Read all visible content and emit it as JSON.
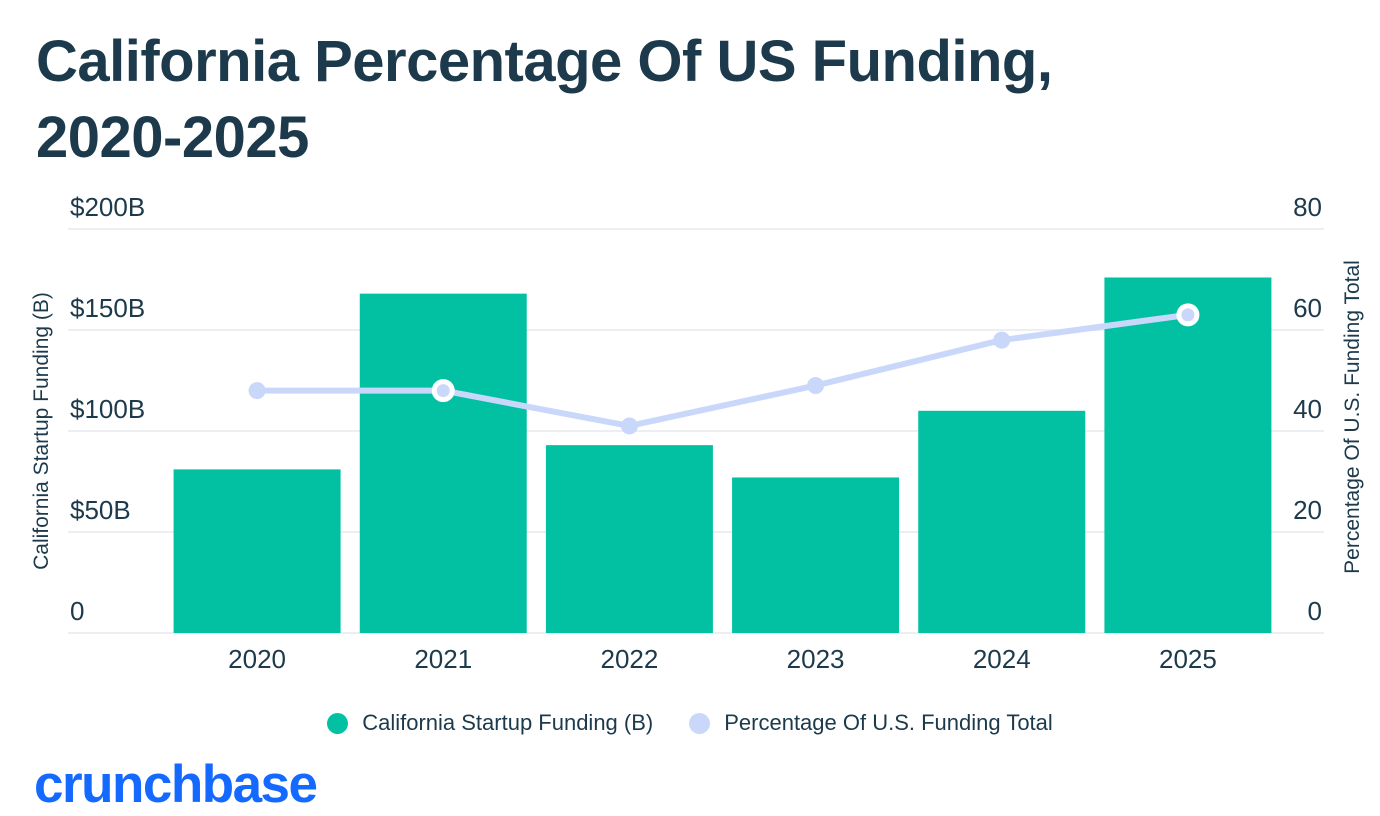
{
  "title": {
    "line1": "California Percentage Of US Funding,",
    "line2": "2020-2025",
    "color": "#1C3A4B"
  },
  "chart_data": {
    "type": "bar+line combo",
    "categories": [
      "2020",
      "2021",
      "2022",
      "2023",
      "2024",
      "2025"
    ],
    "series": [
      {
        "name": "California Startup Funding (B)",
        "type": "bar",
        "axis": "left",
        "unit": "$B",
        "color": "#02C1A2",
        "values": [
          81,
          168,
          93,
          77,
          110,
          176
        ]
      },
      {
        "name": "Percentage Of U.S. Funding Total",
        "type": "line",
        "axis": "right",
        "unit": "%",
        "color": "#C9D8FA",
        "values": [
          48,
          48,
          41,
          49,
          58,
          63
        ],
        "highlight_points": [
          1,
          5
        ]
      }
    ],
    "left_axis": {
      "label": "California Startup Funding (B)",
      "range": [
        0,
        200
      ],
      "ticks": [
        {
          "label": "$200B",
          "value": 200
        },
        {
          "label": "$150B",
          "value": 150
        },
        {
          "label": "$100B",
          "value": 100
        },
        {
          "label": "$50B",
          "value": 50
        },
        {
          "label": "0",
          "value": 0
        }
      ]
    },
    "right_axis": {
      "label": "Percentage Of U.S. Funding Total",
      "range": [
        0,
        80
      ],
      "ticks": [
        {
          "label": "80",
          "value": 80
        },
        {
          "label": "60",
          "value": 60
        },
        {
          "label": "40",
          "value": 40
        },
        {
          "label": "20",
          "value": 20
        },
        {
          "label": "0",
          "value": 0
        }
      ]
    },
    "grid": true,
    "grid_color": "#ECEEF1",
    "legend_position": "bottom",
    "legend": [
      {
        "label": "California Startup Funding (B)",
        "color": "#02C1A2"
      },
      {
        "label": "Percentage Of U.S. Funding Total",
        "color": "#C9D8FA"
      }
    ]
  },
  "branding": {
    "logo_text": "crunchbase",
    "logo_color": "#146AFF"
  }
}
